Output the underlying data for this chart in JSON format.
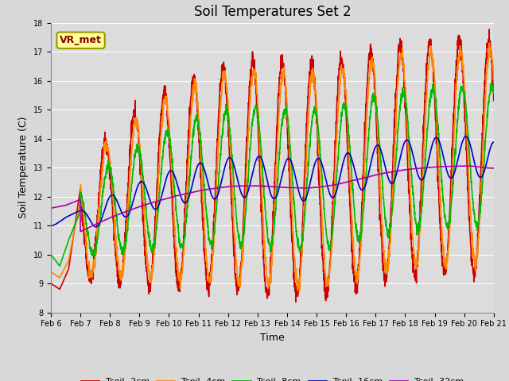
{
  "title": "Soil Temperatures Set 2",
  "xlabel": "Time",
  "ylabel": "Soil Temperature (C)",
  "ylim": [
    8.0,
    18.0
  ],
  "yticks": [
    8.0,
    9.0,
    10.0,
    11.0,
    12.0,
    13.0,
    14.0,
    15.0,
    16.0,
    17.0,
    18.0
  ],
  "fig_facecolor": "#d8d8d8",
  "axes_facecolor": "#dcdcdc",
  "series_colors": {
    "Tsoil -2cm": "#cc0000",
    "Tsoil -4cm": "#ff8800",
    "Tsoil -8cm": "#00bb00",
    "Tsoil -16cm": "#0000cc",
    "Tsoil -32cm": "#aa00aa"
  },
  "series_lw": 1.2,
  "xtick_labels": [
    "Feb 6",
    "Feb 7",
    "Feb 8",
    "Feb 9",
    "Feb 10",
    "Feb 11",
    "Feb 12",
    "Feb 13",
    "Feb 14",
    "Feb 15",
    "Feb 16",
    "Feb 17",
    "Feb 18",
    "Feb 19",
    "Feb 20",
    "Feb 21"
  ],
  "annotation_text": "VR_met",
  "title_fontsize": 12,
  "label_fontsize": 9,
  "tick_fontsize": 7,
  "legend_fontsize": 8
}
